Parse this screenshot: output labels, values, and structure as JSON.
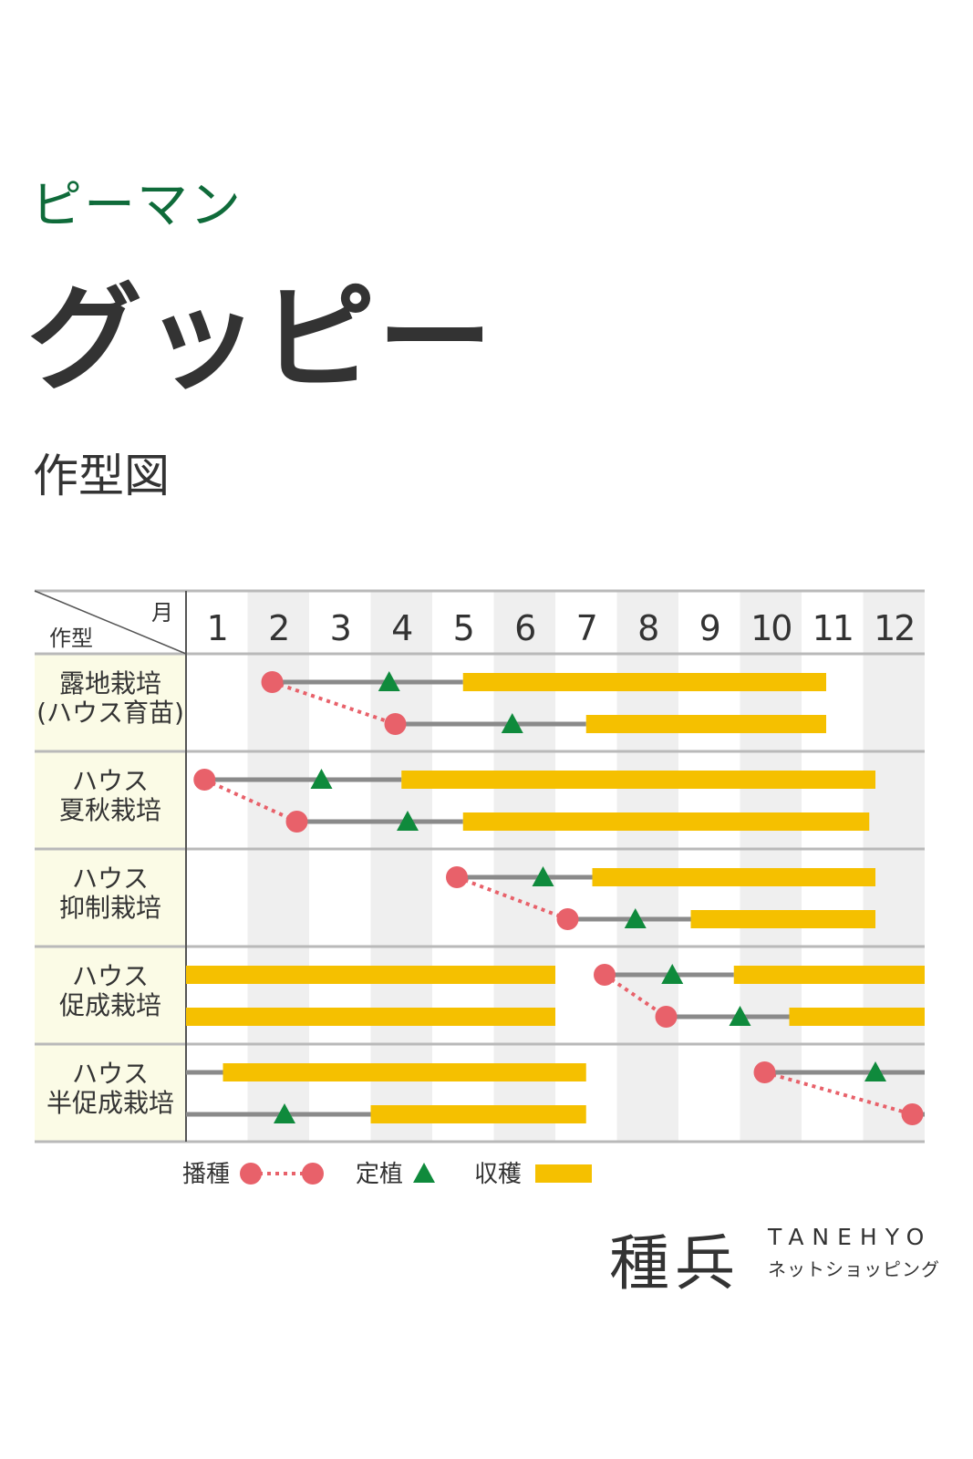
{
  "header": {
    "category": "ピーマン",
    "product": "グッピー",
    "section": "作型図"
  },
  "chart_data": {
    "type": "gantt",
    "corner_month_label": "月",
    "corner_type_label": "作型",
    "categories": [
      "1",
      "2",
      "3",
      "4",
      "5",
      "6",
      "7",
      "8",
      "9",
      "10",
      "11",
      "12"
    ],
    "groups": [
      {
        "label_lines": [
          "露地栽培",
          "(ハウス育苗)"
        ],
        "rows": [
          {
            "sow": 2.4,
            "line": [
              2.4,
              5.5
            ],
            "plant": 4.3,
            "harvest": [
              [
                5.5,
                11.4
              ]
            ]
          },
          {
            "sow": 4.4,
            "line": [
              4.4,
              7.5
            ],
            "plant": 6.3,
            "harvest": [
              [
                7.5,
                11.4
              ]
            ]
          }
        ]
      },
      {
        "label_lines": [
          "ハウス",
          "夏秋栽培"
        ],
        "rows": [
          {
            "sow": 1.3,
            "line": [
              1.3,
              4.5
            ],
            "plant": 3.2,
            "harvest": [
              [
                4.5,
                12.2
              ]
            ]
          },
          {
            "sow": 2.8,
            "line": [
              2.8,
              5.5
            ],
            "plant": 4.6,
            "harvest": [
              [
                5.5,
                12.1
              ]
            ]
          }
        ]
      },
      {
        "label_lines": [
          "ハウス",
          "抑制栽培"
        ],
        "rows": [
          {
            "sow": 5.4,
            "line": [
              5.4,
              7.6
            ],
            "plant": 6.8,
            "harvest": [
              [
                7.6,
                12.2
              ]
            ]
          },
          {
            "sow": 7.2,
            "line": [
              7.2,
              9.2
            ],
            "plant": 8.3,
            "harvest": [
              [
                9.2,
                12.2
              ]
            ]
          }
        ]
      },
      {
        "label_lines": [
          "ハウス",
          "促成栽培"
        ],
        "rows": [
          {
            "sow": 7.8,
            "line": [
              7.8,
              9.9
            ],
            "plant": 8.9,
            "harvest": [
              [
                1.0,
                7.0
              ],
              [
                9.9,
                13.0
              ]
            ]
          },
          {
            "sow": 8.8,
            "line": [
              8.8,
              10.8
            ],
            "plant": 10.0,
            "harvest": [
              [
                1.0,
                7.0
              ],
              [
                10.8,
                13.0
              ]
            ]
          }
        ]
      },
      {
        "label_lines": [
          "ハウス",
          "半促成栽培"
        ],
        "rows": [
          {
            "sow": 10.4,
            "line": [
              1.0,
              1.6
            ],
            "line2": [
              10.4,
              13.0
            ],
            "plant": 12.2,
            "harvest": [
              [
                1.6,
                7.5
              ]
            ]
          },
          {
            "sow": 12.8,
            "line": [
              1.0,
              4.0
            ],
            "line2": [
              12.8,
              13.0
            ],
            "plant": 2.6,
            "harvest": [
              [
                4.0,
                7.5
              ]
            ]
          }
        ]
      }
    ],
    "legend": {
      "sow": "播種",
      "plant": "定植",
      "harvest": "収穫"
    },
    "colors": {
      "sow": "#e8616a",
      "plant": "#0f8a3c",
      "harvest": "#f5c000",
      "line": "#8a8a8a",
      "label_bg": "#fbfbe6",
      "stripe": "#efefef",
      "rule": "#b9b9b9"
    }
  },
  "brand": {
    "kanji": "種兵",
    "name": "TANEHYO",
    "tagline": "ネットショッピング"
  }
}
